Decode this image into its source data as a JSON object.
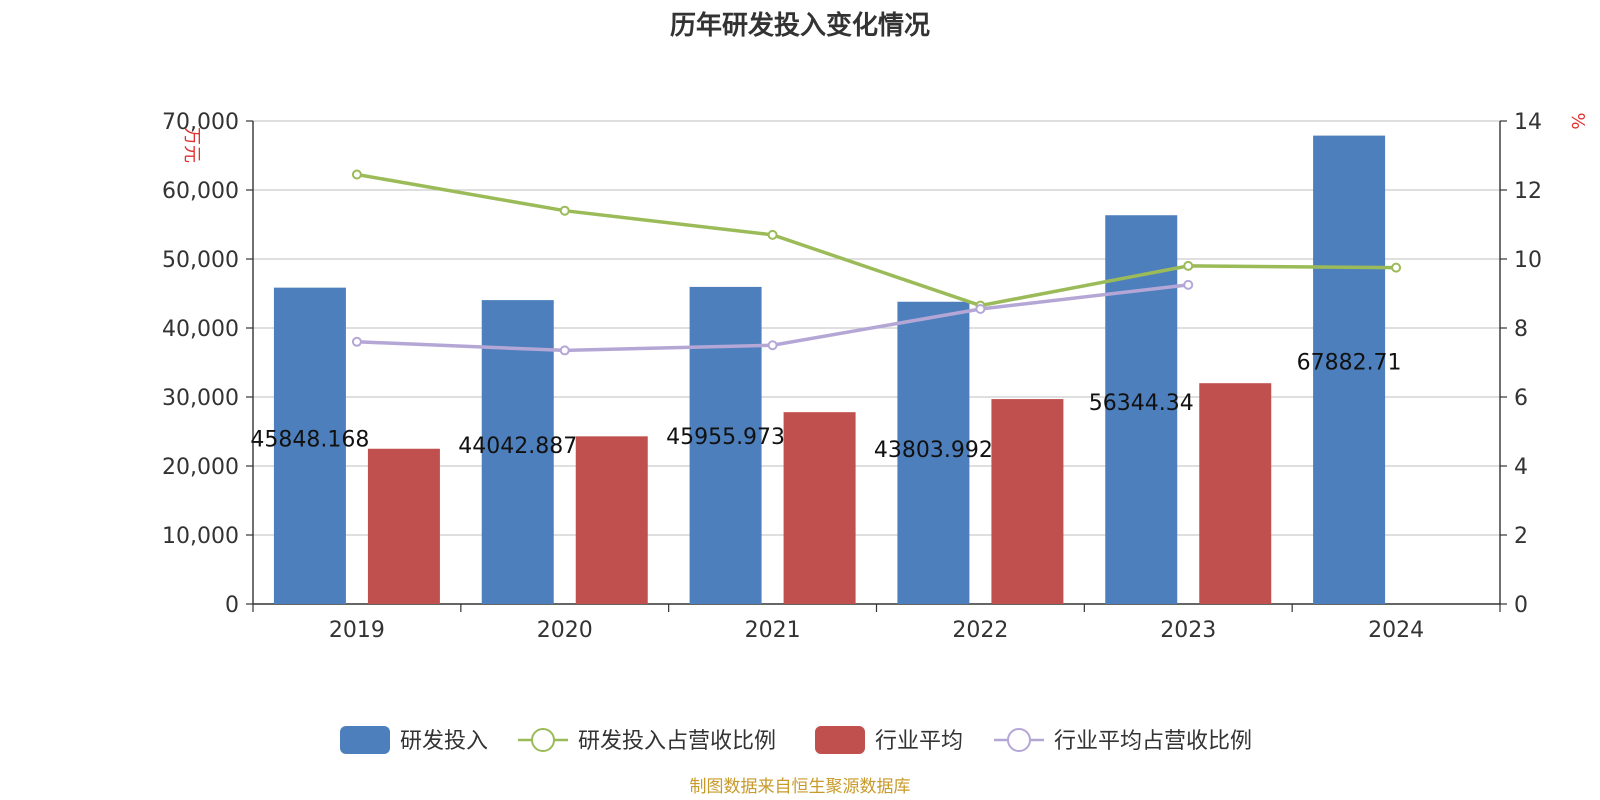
{
  "chart_data": {
    "type": "bar",
    "title": "历年研发投入变化情况",
    "categories": [
      "2019",
      "2020",
      "2021",
      "2022",
      "2023",
      "2024"
    ],
    "y_left": {
      "unit": "万元",
      "ylim": [
        0,
        70000
      ],
      "ticks": [
        "0",
        "10,000",
        "20,000",
        "30,000",
        "40,000",
        "50,000",
        "60,000",
        "70,000"
      ]
    },
    "y_right": {
      "unit": "%",
      "ylim": [
        0,
        14
      ],
      "ticks": [
        "0",
        "2",
        "4",
        "6",
        "8",
        "10",
        "12",
        "14"
      ]
    },
    "grid": true,
    "legend_position": "bottom",
    "series": [
      {
        "name": "研发投入",
        "type": "bar",
        "axis": "left",
        "color": "#4e7fbd",
        "values": [
          45848.168,
          44042.887,
          45955.973,
          43803.992,
          56344.34,
          67882.71
        ],
        "labels": [
          "45848.168",
          "44042.887",
          "45955.973",
          "43803.992",
          "56344.34",
          "67882.71"
        ]
      },
      {
        "name": "研发投入占营收比例",
        "type": "line",
        "axis": "right",
        "color": "#9bbb59",
        "values": [
          12.45,
          11.4,
          10.7,
          8.65,
          9.8,
          9.75
        ]
      },
      {
        "name": "行业平均",
        "type": "bar",
        "axis": "left",
        "color": "#c0504d",
        "values": [
          22500,
          24300,
          27800,
          29700,
          32000,
          null
        ]
      },
      {
        "name": "行业平均占营收比例",
        "type": "line",
        "axis": "right",
        "color": "#b4a7d6",
        "values": [
          7.6,
          7.35,
          7.5,
          8.55,
          9.25,
          null
        ]
      }
    ],
    "source": "制图数据来自恒生聚源数据库"
  }
}
